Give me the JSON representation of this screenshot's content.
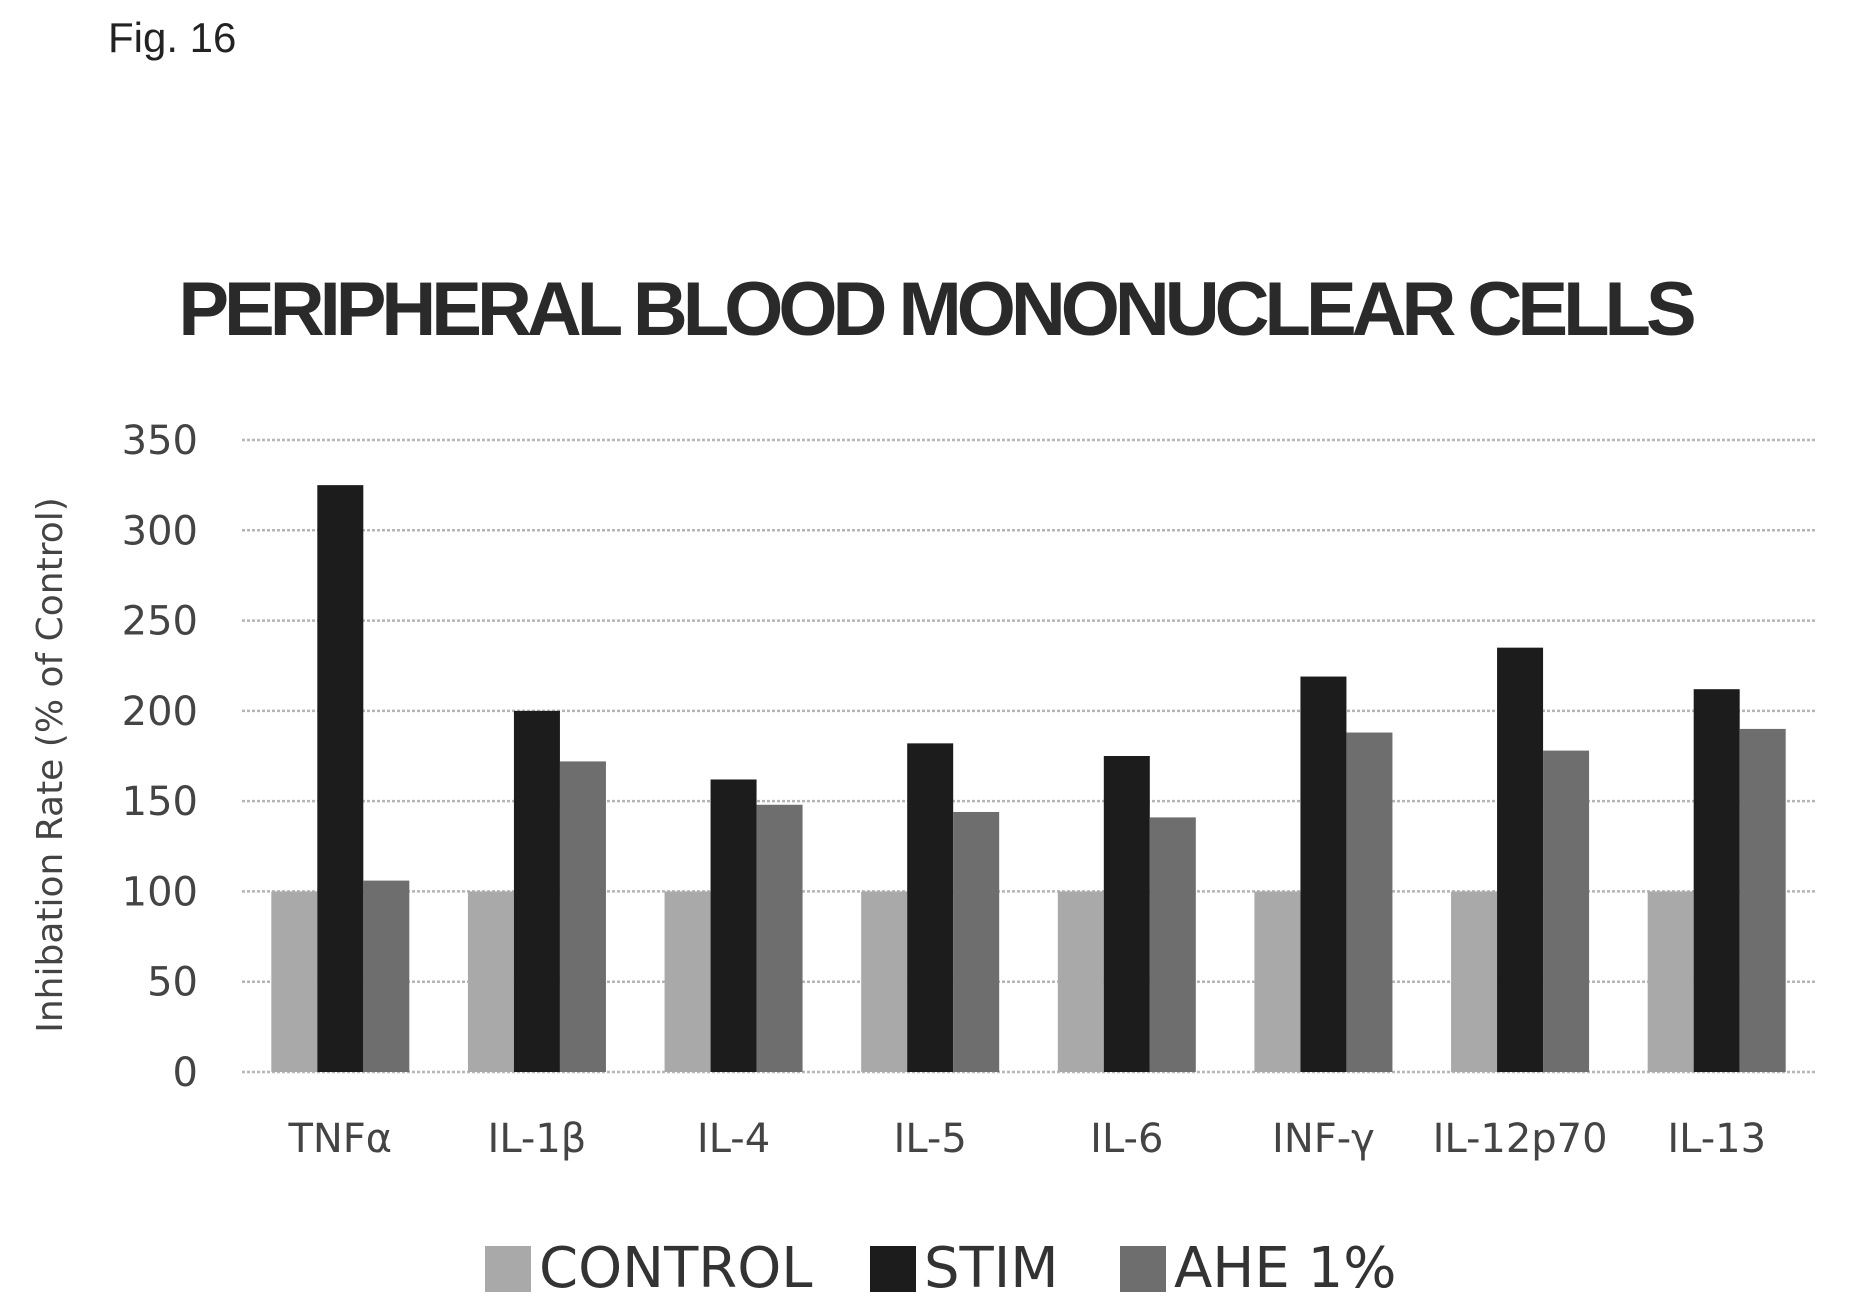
{
  "figure_label": "Fig. 16",
  "chart_data": {
    "type": "bar",
    "title": "PERIPHERAL BLOOD MONONUCLEAR CELLS",
    "xlabel": "",
    "ylabel": "Inhibation Rate (% of Control)",
    "ylim": [
      0,
      350
    ],
    "yticks": [
      0,
      50,
      100,
      150,
      200,
      250,
      300,
      350
    ],
    "grid": true,
    "legend_position": "bottom",
    "categories": [
      "TNFα",
      "IL-1β",
      "IL-4",
      "IL-5",
      "IL-6",
      "INF-γ",
      "IL-12p70",
      "IL-13"
    ],
    "series": [
      {
        "name": "CONTROL",
        "color": "#a9a9a9",
        "values": [
          100,
          100,
          100,
          100,
          100,
          100,
          100,
          100
        ]
      },
      {
        "name": "STIM",
        "color": "#1c1c1c",
        "values": [
          325,
          200,
          162,
          182,
          175,
          219,
          235,
          212
        ]
      },
      {
        "name": "AHE 1%",
        "color": "#6e6e6e",
        "values": [
          106,
          172,
          148,
          144,
          141,
          188,
          178,
          190
        ]
      }
    ]
  }
}
